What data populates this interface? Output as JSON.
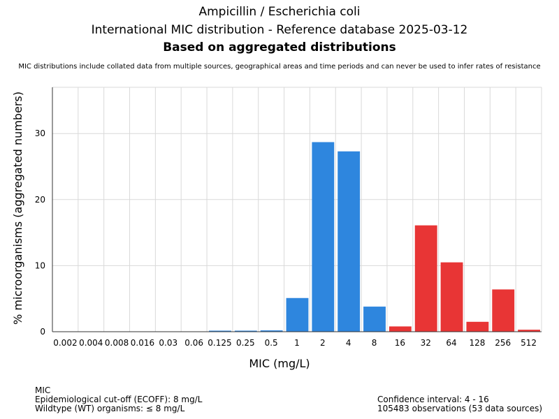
{
  "header": {
    "title_line1": "Ampicillin / Escherichia coli",
    "title_line2": "International MIC distribution - Reference database 2025-03-12",
    "title_line3": "Based on aggregated distributions",
    "subtitle": "MIC distributions include collated data from multiple sources, geographical areas and time periods and can never be used to infer rates of resistance"
  },
  "chart_data": {
    "type": "bar",
    "xlabel": "MIC (mg/L)",
    "ylabel": "% microorganisms (aggregated numbers)",
    "ylim": [
      0,
      37
    ],
    "yticks": [
      0,
      10,
      20,
      30
    ],
    "grid": true,
    "categories": [
      "0.002",
      "0.004",
      "0.008",
      "0.016",
      "0.03",
      "0.06",
      "0.125",
      "0.25",
      "0.5",
      "1",
      "2",
      "4",
      "8",
      "16",
      "32",
      "64",
      "128",
      "256",
      "512"
    ],
    "values": [
      0,
      0,
      0,
      0,
      0,
      0,
      0.1,
      0.1,
      0.2,
      5.1,
      28.7,
      27.3,
      3.8,
      0.8,
      16.1,
      10.5,
      1.5,
      6.4,
      0.3
    ],
    "colors": [
      "#2E86DE",
      "#2E86DE",
      "#2E86DE",
      "#2E86DE",
      "#2E86DE",
      "#2E86DE",
      "#2E86DE",
      "#2E86DE",
      "#2E86DE",
      "#2E86DE",
      "#2E86DE",
      "#2E86DE",
      "#2E86DE",
      "#E83535",
      "#E83535",
      "#E83535",
      "#E83535",
      "#E83535",
      "#E83535"
    ],
    "wildtype_color": "#2E86DE",
    "non_wildtype_color": "#E83535"
  },
  "footer": {
    "left_line1": "MIC",
    "left_line2": "Epidemiological cut-off (ECOFF): 8 mg/L",
    "left_line3": "Wildtype (WT) organisms: ≤ 8 mg/L",
    "right_line1": "Confidence interval: 4 - 16",
    "right_line2": "105483 observations (53 data sources)"
  }
}
